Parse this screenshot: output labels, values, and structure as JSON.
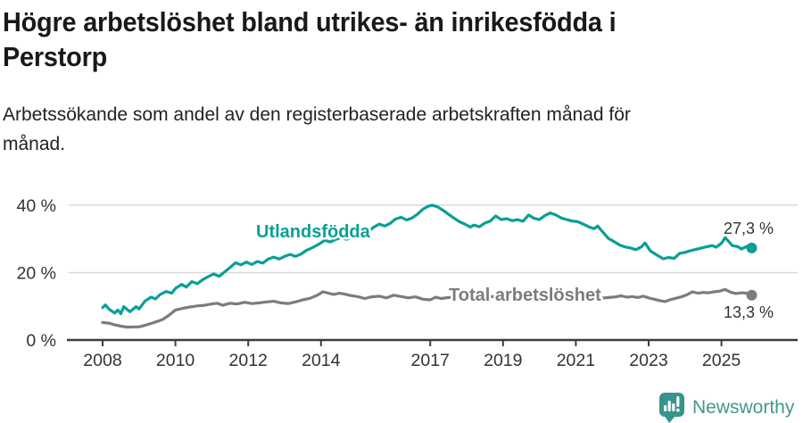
{
  "chart_data": {
    "type": "line",
    "title": "Högre arbetslöshet bland utrikes- än inrikesfödda i Perstorp",
    "title_lines": [
      "Högre arbetslöshet bland utrikes- än inrikesfödda i",
      "Perstorp"
    ],
    "subtitle": "Arbetssökande som andel av den registerbaserade arbetskraften månad för månad.",
    "subtitle_lines": [
      "Arbetssökande som andel av den registerbaserade arbetskraften månad för",
      "månad."
    ],
    "grid": "horizontal",
    "legend_position": "inline-labels",
    "x_axis": {
      "unit": "year",
      "frequency": "monthly",
      "range": [
        2008,
        2025.9
      ],
      "ticks": [
        "2008",
        "2010",
        "2012",
        "2014",
        "2017",
        "2019",
        "2021",
        "2023",
        "2025"
      ]
    },
    "y_axis": {
      "unit": "%",
      "range": [
        0,
        42
      ],
      "ticks": [
        {
          "value": 40,
          "label": "40 %"
        },
        {
          "value": 20,
          "label": "20 %"
        },
        {
          "value": 0,
          "label": "0 %"
        }
      ]
    },
    "series": [
      {
        "id": "utlandsfodda",
        "name": "Utlandsfödda",
        "color": "#0a9f96",
        "end_label": "27,3 %",
        "end_value": 27.3,
        "points": [
          [
            2008.0,
            9.6
          ],
          [
            2008.08,
            10.4
          ],
          [
            2008.17,
            9.2
          ],
          [
            2008.33,
            8.0
          ],
          [
            2008.42,
            8.9
          ],
          [
            2008.5,
            7.8
          ],
          [
            2008.58,
            9.9
          ],
          [
            2008.75,
            8.4
          ],
          [
            2008.92,
            9.9
          ],
          [
            2009.0,
            9.2
          ],
          [
            2009.17,
            11.6
          ],
          [
            2009.33,
            12.7
          ],
          [
            2009.45,
            12.2
          ],
          [
            2009.58,
            13.5
          ],
          [
            2009.75,
            14.4
          ],
          [
            2009.9,
            13.9
          ],
          [
            2010.0,
            15.3
          ],
          [
            2010.17,
            16.5
          ],
          [
            2010.3,
            15.7
          ],
          [
            2010.45,
            17.3
          ],
          [
            2010.6,
            16.7
          ],
          [
            2010.75,
            17.9
          ],
          [
            2010.9,
            18.8
          ],
          [
            2011.05,
            19.6
          ],
          [
            2011.2,
            18.9
          ],
          [
            2011.35,
            20.2
          ],
          [
            2011.5,
            21.5
          ],
          [
            2011.65,
            22.9
          ],
          [
            2011.8,
            22.3
          ],
          [
            2011.95,
            23.1
          ],
          [
            2012.1,
            22.4
          ],
          [
            2012.25,
            23.3
          ],
          [
            2012.4,
            22.8
          ],
          [
            2012.55,
            24.0
          ],
          [
            2012.7,
            24.6
          ],
          [
            2012.85,
            24.0
          ],
          [
            2013.0,
            24.8
          ],
          [
            2013.15,
            25.4
          ],
          [
            2013.3,
            24.8
          ],
          [
            2013.45,
            25.5
          ],
          [
            2013.6,
            26.6
          ],
          [
            2013.75,
            27.3
          ],
          [
            2013.9,
            28.2
          ],
          [
            2014.0,
            28.8
          ],
          [
            2014.1,
            29.6
          ],
          [
            2014.25,
            29.1
          ],
          [
            2014.4,
            29.8
          ],
          [
            2014.55,
            30.4
          ],
          [
            2014.7,
            29.9
          ],
          [
            2014.85,
            30.6
          ],
          [
            2015.0,
            30.2
          ],
          [
            2015.15,
            31.3
          ],
          [
            2015.3,
            32.2
          ],
          [
            2015.45,
            33.5
          ],
          [
            2015.6,
            34.4
          ],
          [
            2015.75,
            33.8
          ],
          [
            2015.9,
            34.6
          ],
          [
            2016.05,
            35.9
          ],
          [
            2016.2,
            36.4
          ],
          [
            2016.35,
            35.6
          ],
          [
            2016.5,
            36.2
          ],
          [
            2016.65,
            37.3
          ],
          [
            2016.8,
            38.8
          ],
          [
            2016.95,
            39.7
          ],
          [
            2017.05,
            40.0
          ],
          [
            2017.2,
            39.5
          ],
          [
            2017.35,
            38.5
          ],
          [
            2017.5,
            37.3
          ],
          [
            2017.65,
            36.2
          ],
          [
            2017.8,
            35.1
          ],
          [
            2017.95,
            34.4
          ],
          [
            2018.1,
            33.5
          ],
          [
            2018.2,
            34.1
          ],
          [
            2018.35,
            33.6
          ],
          [
            2018.5,
            34.7
          ],
          [
            2018.65,
            35.3
          ],
          [
            2018.8,
            36.8
          ],
          [
            2018.95,
            35.7
          ],
          [
            2019.1,
            36.0
          ],
          [
            2019.25,
            35.4
          ],
          [
            2019.4,
            35.7
          ],
          [
            2019.55,
            35.2
          ],
          [
            2019.7,
            37.1
          ],
          [
            2019.85,
            36.1
          ],
          [
            2020.0,
            35.7
          ],
          [
            2020.15,
            36.9
          ],
          [
            2020.3,
            37.7
          ],
          [
            2020.45,
            37.1
          ],
          [
            2020.6,
            36.2
          ],
          [
            2020.75,
            35.7
          ],
          [
            2020.9,
            35.3
          ],
          [
            2021.05,
            35.1
          ],
          [
            2021.2,
            34.4
          ],
          [
            2021.35,
            33.6
          ],
          [
            2021.5,
            33.0
          ],
          [
            2021.6,
            33.8
          ],
          [
            2021.75,
            31.9
          ],
          [
            2021.9,
            30.1
          ],
          [
            2022.05,
            29.2
          ],
          [
            2022.2,
            28.2
          ],
          [
            2022.35,
            27.6
          ],
          [
            2022.5,
            27.3
          ],
          [
            2022.65,
            26.8
          ],
          [
            2022.8,
            27.6
          ],
          [
            2022.9,
            28.8
          ],
          [
            2023.05,
            26.4
          ],
          [
            2023.2,
            25.4
          ],
          [
            2023.4,
            24.1
          ],
          [
            2023.55,
            24.5
          ],
          [
            2023.7,
            24.2
          ],
          [
            2023.85,
            25.7
          ],
          [
            2024.0,
            26.0
          ],
          [
            2024.15,
            26.5
          ],
          [
            2024.3,
            26.9
          ],
          [
            2024.45,
            27.3
          ],
          [
            2024.6,
            27.7
          ],
          [
            2024.75,
            28.0
          ],
          [
            2024.85,
            27.5
          ],
          [
            2025.0,
            28.7
          ],
          [
            2025.1,
            30.4
          ],
          [
            2025.2,
            29.2
          ],
          [
            2025.3,
            28.0
          ],
          [
            2025.45,
            27.7
          ],
          [
            2025.55,
            27.0
          ],
          [
            2025.7,
            27.8
          ],
          [
            2025.83,
            27.3
          ]
        ]
      },
      {
        "id": "total",
        "name": "Total arbetslöshet",
        "color": "#7c7c7c",
        "end_label": "13,3 %",
        "end_value": 13.3,
        "points": [
          [
            2008.0,
            5.2
          ],
          [
            2008.17,
            5.0
          ],
          [
            2008.33,
            4.5
          ],
          [
            2008.5,
            4.1
          ],
          [
            2008.67,
            3.8
          ],
          [
            2008.83,
            3.9
          ],
          [
            2009.0,
            3.9
          ],
          [
            2009.17,
            4.4
          ],
          [
            2009.33,
            4.9
          ],
          [
            2009.5,
            5.5
          ],
          [
            2009.67,
            6.2
          ],
          [
            2009.83,
            7.4
          ],
          [
            2010.0,
            8.9
          ],
          [
            2010.2,
            9.4
          ],
          [
            2010.4,
            9.8
          ],
          [
            2010.6,
            10.1
          ],
          [
            2010.8,
            10.3
          ],
          [
            2011.0,
            10.7
          ],
          [
            2011.15,
            10.9
          ],
          [
            2011.3,
            10.3
          ],
          [
            2011.5,
            10.9
          ],
          [
            2011.7,
            10.7
          ],
          [
            2011.9,
            11.2
          ],
          [
            2012.1,
            10.8
          ],
          [
            2012.3,
            11.0
          ],
          [
            2012.5,
            11.3
          ],
          [
            2012.7,
            11.5
          ],
          [
            2012.9,
            11.0
          ],
          [
            2013.1,
            10.8
          ],
          [
            2013.3,
            11.3
          ],
          [
            2013.5,
            11.9
          ],
          [
            2013.7,
            12.4
          ],
          [
            2013.9,
            13.3
          ],
          [
            2014.05,
            14.3
          ],
          [
            2014.2,
            13.9
          ],
          [
            2014.35,
            13.5
          ],
          [
            2014.5,
            13.9
          ],
          [
            2014.65,
            13.6
          ],
          [
            2014.8,
            13.2
          ],
          [
            2015.0,
            12.9
          ],
          [
            2015.2,
            12.3
          ],
          [
            2015.4,
            12.8
          ],
          [
            2015.6,
            13.0
          ],
          [
            2015.8,
            12.5
          ],
          [
            2016.0,
            13.3
          ],
          [
            2016.2,
            12.9
          ],
          [
            2016.4,
            12.5
          ],
          [
            2016.6,
            12.8
          ],
          [
            2016.8,
            12.1
          ],
          [
            2017.0,
            11.9
          ],
          [
            2017.15,
            12.7
          ],
          [
            2017.3,
            12.3
          ],
          [
            2017.5,
            12.6
          ],
          [
            2017.7,
            12.9
          ],
          [
            2017.9,
            12.5
          ],
          [
            2018.1,
            13.2
          ],
          [
            2018.3,
            12.9
          ],
          [
            2018.5,
            12.7
          ],
          [
            2018.7,
            12.9
          ],
          [
            2018.9,
            12.6
          ],
          [
            2019.1,
            12.8
          ],
          [
            2019.3,
            12.6
          ],
          [
            2019.5,
            12.8
          ],
          [
            2019.7,
            12.6
          ],
          [
            2019.9,
            12.9
          ],
          [
            2020.1,
            13.3
          ],
          [
            2020.3,
            13.9
          ],
          [
            2020.5,
            13.6
          ],
          [
            2020.7,
            13.4
          ],
          [
            2020.9,
            13.1
          ],
          [
            2021.1,
            13.0
          ],
          [
            2021.3,
            12.8
          ],
          [
            2021.5,
            12.6
          ],
          [
            2021.7,
            12.4
          ],
          [
            2021.9,
            12.6
          ],
          [
            2022.1,
            12.8
          ],
          [
            2022.25,
            13.1
          ],
          [
            2022.4,
            12.7
          ],
          [
            2022.55,
            12.9
          ],
          [
            2022.7,
            12.6
          ],
          [
            2022.85,
            13.0
          ],
          [
            2023.0,
            12.5
          ],
          [
            2023.15,
            12.1
          ],
          [
            2023.3,
            11.7
          ],
          [
            2023.45,
            11.4
          ],
          [
            2023.6,
            12.0
          ],
          [
            2023.75,
            12.4
          ],
          [
            2023.9,
            12.8
          ],
          [
            2024.05,
            13.4
          ],
          [
            2024.2,
            14.3
          ],
          [
            2024.35,
            13.9
          ],
          [
            2024.5,
            14.1
          ],
          [
            2024.65,
            14.0
          ],
          [
            2024.8,
            14.3
          ],
          [
            2024.95,
            14.5
          ],
          [
            2025.1,
            15.0
          ],
          [
            2025.25,
            14.2
          ],
          [
            2025.4,
            13.8
          ],
          [
            2025.55,
            14.0
          ],
          [
            2025.7,
            13.9
          ],
          [
            2025.83,
            13.3
          ]
        ]
      }
    ]
  },
  "footer": {
    "brand": "Newsworthy",
    "logo_color": "#37948c",
    "wordmark_color": "#45978f"
  }
}
